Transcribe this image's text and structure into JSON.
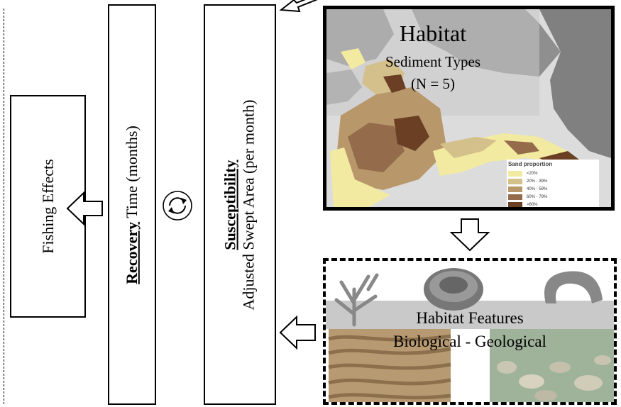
{
  "boxes": {
    "fishing_effects": "Fishing Effects",
    "recovery": {
      "bold": "Recovery",
      "rest": " Time (months)"
    },
    "susceptibility": {
      "title": "Susceptibility",
      "subtitle": "Adjusted Swept Area (per month)"
    }
  },
  "habitat_map": {
    "title": "Habitat",
    "subtitle": "Sediment Types",
    "count": "(N = 5)",
    "legend": {
      "title": "Sand proportion",
      "items": [
        {
          "label": "<20%",
          "color": "#f2eaa0"
        },
        {
          "label": "20% - 39%",
          "color": "#d4c08a"
        },
        {
          "label": "40% - 59%",
          "color": "#b8976a"
        },
        {
          "label": "60% - 79%",
          "color": "#946b4b"
        },
        {
          "label": ">80%",
          "color": "#6b3f24"
        }
      ]
    },
    "colors": {
      "land": "#8a8a8a",
      "water": "#d9d9d9",
      "overlay": "#bfbfbf"
    }
  },
  "habitat_features": {
    "title": "Habitat Features",
    "subtitle": "Biological - Geological"
  },
  "icons": [
    "cycle-icon",
    "arrow-left-icon",
    "arrow-down-icon",
    "arrow-down-left-icon"
  ]
}
